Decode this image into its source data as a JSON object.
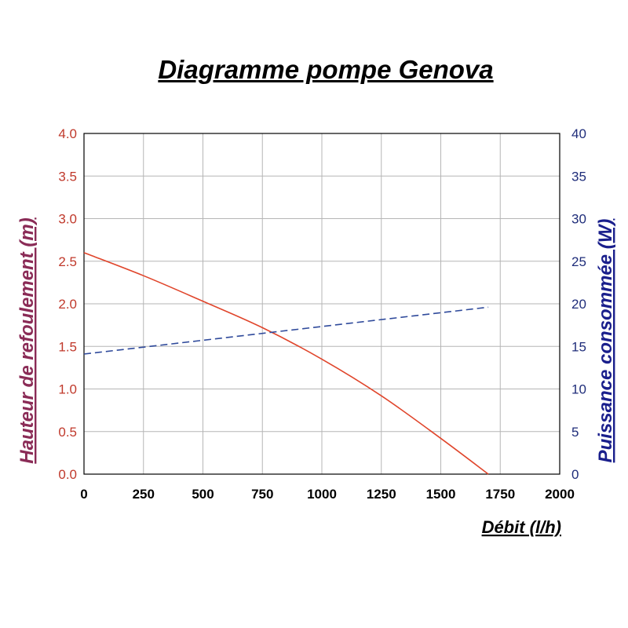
{
  "chart_data": {
    "type": "line",
    "title": "Diagramme pompe Genova",
    "xlabel": "Débit (l/h)",
    "ylabel": "Hauteur de refoulement (m)",
    "ylabel_right": "Puissance consommée (W)",
    "xlim": [
      0,
      2000
    ],
    "ylim": [
      0,
      4.0
    ],
    "ylim_right": [
      0,
      40
    ],
    "x_ticks": [
      "0",
      "250",
      "500",
      "750",
      "1000",
      "1250",
      "1500",
      "1750",
      "2000"
    ],
    "y_ticks": [
      "0.0",
      "0.5",
      "1.0",
      "1.5",
      "2.0",
      "2.5",
      "3.0",
      "3.5",
      "4.0"
    ],
    "y_ticks_right": [
      "0",
      "5",
      "10",
      "15",
      "20",
      "25",
      "30",
      "35",
      "40"
    ],
    "grid": true,
    "series": [
      {
        "axis": "left",
        "style": "solid",
        "color": "#e0452b",
        "x": [
          0,
          250,
          500,
          750,
          1000,
          1250,
          1500,
          1700
        ],
        "values": [
          2.6,
          2.33,
          2.03,
          1.72,
          1.35,
          0.92,
          0.42,
          0.0
        ]
      },
      {
        "axis": "right",
        "style": "dashed",
        "color": "#2f4a9b",
        "x": [
          0,
          1700
        ],
        "values": [
          14.1,
          19.6
        ]
      }
    ]
  }
}
